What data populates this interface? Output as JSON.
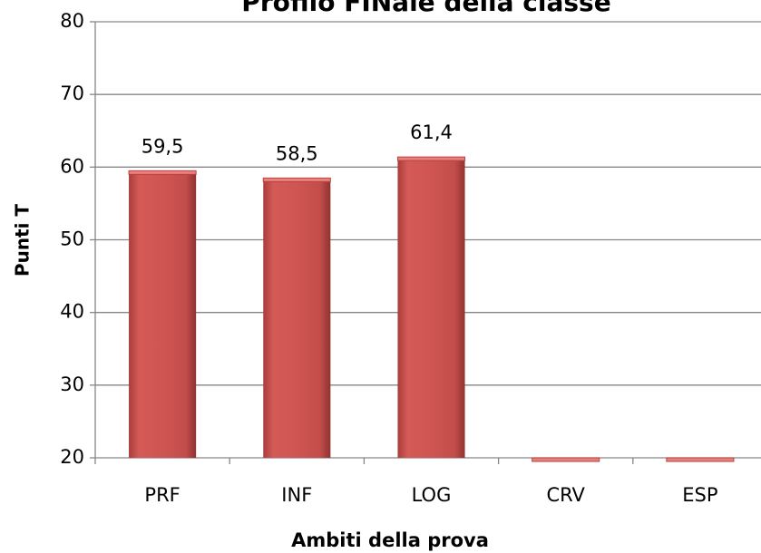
{
  "chart_data": {
    "type": "bar",
    "title": "Profilo FINale della classe",
    "xlabel": "Ambiti della prova",
    "ylabel": "Punti T",
    "categories": [
      "PRF",
      "INF",
      "LOG",
      "CRV",
      "ESP"
    ],
    "values": [
      59.5,
      58.5,
      61.4,
      20,
      20
    ],
    "value_labels": [
      "59,5",
      "58,5",
      "61,4",
      null,
      null
    ],
    "color": "#c0504d",
    "ylim": [
      20,
      80
    ],
    "yticks": [
      20,
      30,
      40,
      50,
      60,
      70,
      80
    ],
    "grid": true
  }
}
